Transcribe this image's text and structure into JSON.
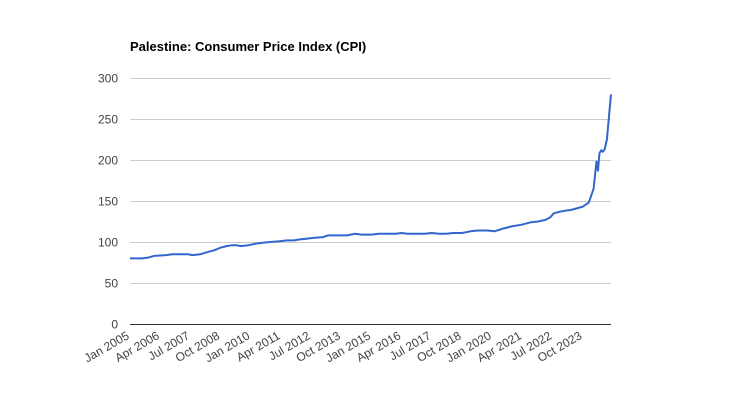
{
  "chart_data": {
    "type": "line",
    "title": "Palestine: Consumer Price Index (CPI)",
    "xlabel": "",
    "ylabel": "",
    "ylim": [
      0,
      300
    ],
    "yticks": [
      0,
      50,
      100,
      150,
      200,
      250,
      300
    ],
    "ytick_labels": [
      "0",
      "50",
      "100",
      "150",
      "200",
      "250",
      "300"
    ],
    "grid": true,
    "x_range": [
      2005.0,
      2024.92
    ],
    "xticks": [
      {
        "label": "Jan 2005",
        "x": 2005.0
      },
      {
        "label": "Apr 2006",
        "x": 2006.25
      },
      {
        "label": "Jul 2007",
        "x": 2007.5
      },
      {
        "label": "Oct 2008",
        "x": 2008.75
      },
      {
        "label": "Jan 2010",
        "x": 2010.0
      },
      {
        "label": "Apr 2011",
        "x": 2011.25
      },
      {
        "label": "Jul 2012",
        "x": 2012.5
      },
      {
        "label": "Oct 2013",
        "x": 2013.75
      },
      {
        "label": "Jan 2015",
        "x": 2015.0
      },
      {
        "label": "Apr 2016",
        "x": 2016.25
      },
      {
        "label": "Jul 2017",
        "x": 2017.5
      },
      {
        "label": "Oct 2018",
        "x": 2018.75
      },
      {
        "label": "Jan 2020",
        "x": 2020.0
      },
      {
        "label": "Apr 2021",
        "x": 2021.25
      },
      {
        "label": "Jul 2022",
        "x": 2022.5
      },
      {
        "label": "Oct 2023",
        "x": 2023.75
      }
    ],
    "series": [
      {
        "name": "CPI",
        "color": "#3366cc",
        "points": [
          [
            2005.0,
            80
          ],
          [
            2005.5,
            80
          ],
          [
            2005.75,
            81
          ],
          [
            2006.0,
            83
          ],
          [
            2006.5,
            84
          ],
          [
            2006.75,
            85
          ],
          [
            2007.0,
            85
          ],
          [
            2007.4,
            85
          ],
          [
            2007.6,
            84
          ],
          [
            2007.9,
            85
          ],
          [
            2008.25,
            88
          ],
          [
            2008.5,
            90
          ],
          [
            2008.75,
            93
          ],
          [
            2009.0,
            95
          ],
          [
            2009.2,
            96
          ],
          [
            2009.4,
            96
          ],
          [
            2009.6,
            95
          ],
          [
            2009.9,
            96
          ],
          [
            2010.2,
            98
          ],
          [
            2010.5,
            99
          ],
          [
            2010.8,
            100
          ],
          [
            2011.2,
            101
          ],
          [
            2011.5,
            102
          ],
          [
            2011.8,
            102
          ],
          [
            2012.0,
            103
          ],
          [
            2012.3,
            104
          ],
          [
            2012.6,
            105
          ],
          [
            2013.0,
            106
          ],
          [
            2013.2,
            108
          ],
          [
            2013.6,
            108
          ],
          [
            2014.0,
            108
          ],
          [
            2014.3,
            110
          ],
          [
            2014.6,
            109
          ],
          [
            2015.0,
            109
          ],
          [
            2015.3,
            110
          ],
          [
            2015.6,
            110
          ],
          [
            2016.0,
            110
          ],
          [
            2016.25,
            111
          ],
          [
            2016.5,
            110
          ],
          [
            2016.9,
            110
          ],
          [
            2017.2,
            110
          ],
          [
            2017.5,
            111
          ],
          [
            2017.8,
            110
          ],
          [
            2018.1,
            110
          ],
          [
            2018.4,
            111
          ],
          [
            2018.75,
            111
          ],
          [
            2019.1,
            113
          ],
          [
            2019.4,
            114
          ],
          [
            2019.8,
            114
          ],
          [
            2020.1,
            113
          ],
          [
            2020.4,
            116
          ],
          [
            2020.8,
            119
          ],
          [
            2021.2,
            121
          ],
          [
            2021.6,
            124
          ],
          [
            2021.9,
            125
          ],
          [
            2022.2,
            127
          ],
          [
            2022.4,
            130
          ],
          [
            2022.55,
            135
          ],
          [
            2022.8,
            137
          ],
          [
            2023.0,
            138
          ],
          [
            2023.25,
            139
          ],
          [
            2023.5,
            141
          ],
          [
            2023.75,
            143
          ],
          [
            2024.0,
            148
          ],
          [
            2024.2,
            165
          ],
          [
            2024.32,
            198
          ],
          [
            2024.38,
            187
          ],
          [
            2024.44,
            208
          ],
          [
            2024.52,
            212
          ],
          [
            2024.58,
            210
          ],
          [
            2024.66,
            213
          ],
          [
            2024.75,
            225
          ],
          [
            2024.82,
            248
          ],
          [
            2024.92,
            280
          ]
        ]
      }
    ]
  }
}
